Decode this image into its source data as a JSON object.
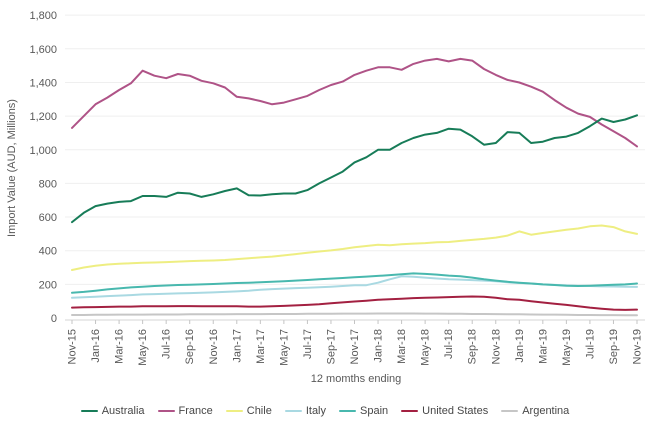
{
  "chart_data": {
    "type": "line",
    "title": "",
    "xlabel": "12 momths ending",
    "ylabel": "Import Value (AUD, Millions)",
    "x": [
      "Nov-15",
      "Dec-15",
      "Jan-16",
      "Feb-16",
      "Mar-16",
      "Apr-16",
      "May-16",
      "Jun-16",
      "Jul-16",
      "Aug-16",
      "Sep-16",
      "Oct-16",
      "Nov-16",
      "Dec-16",
      "Jan-17",
      "Feb-17",
      "Mar-17",
      "Apr-17",
      "May-17",
      "Jun-17",
      "Jul-17",
      "Aug-17",
      "Sep-17",
      "Oct-17",
      "Nov-17",
      "Dec-17",
      "Jan-18",
      "Feb-18",
      "Mar-18",
      "Apr-18",
      "May-18",
      "Jun-18",
      "Jul-18",
      "Aug-18",
      "Sep-18",
      "Oct-18",
      "Nov-18",
      "Dec-18",
      "Jan-19",
      "Feb-19",
      "Mar-19",
      "Apr-19",
      "May-19",
      "Jun-19",
      "Jul-19",
      "Aug-19",
      "Sep-19",
      "Oct-19",
      "Nov-19"
    ],
    "x_tick_every": 2,
    "ylim": [
      0,
      1800
    ],
    "y_tick_step": 200,
    "y_tick_labels": [
      "0",
      "200",
      "400",
      "600",
      "800",
      "1,000",
      "1,200",
      "1,400",
      "1,600",
      "1,800"
    ],
    "grid": true,
    "legend_position": "bottom",
    "series": [
      {
        "name": "Australia",
        "color": "#177c58",
        "values": [
          570,
          625,
          665,
          680,
          690,
          695,
          725,
          725,
          720,
          745,
          740,
          720,
          735,
          755,
          770,
          730,
          728,
          735,
          740,
          740,
          760,
          800,
          835,
          870,
          925,
          955,
          1000,
          1000,
          1040,
          1070,
          1090,
          1100,
          1125,
          1120,
          1080,
          1030,
          1040,
          1105,
          1100,
          1040,
          1048,
          1070,
          1078,
          1100,
          1140,
          1185,
          1165,
          1180,
          1205
        ]
      },
      {
        "name": "France",
        "color": "#af5387",
        "values": [
          1130,
          1200,
          1270,
          1310,
          1355,
          1395,
          1470,
          1440,
          1425,
          1450,
          1440,
          1410,
          1395,
          1370,
          1315,
          1305,
          1290,
          1270,
          1280,
          1300,
          1320,
          1355,
          1385,
          1405,
          1445,
          1470,
          1490,
          1490,
          1475,
          1510,
          1530,
          1540,
          1525,
          1540,
          1530,
          1480,
          1445,
          1415,
          1400,
          1375,
          1345,
          1295,
          1250,
          1215,
          1195,
          1150,
          1110,
          1070,
          1020
        ]
      },
      {
        "name": "Chile",
        "color": "#eeee82",
        "values": [
          285,
          300,
          310,
          318,
          322,
          325,
          328,
          330,
          332,
          335,
          338,
          340,
          342,
          345,
          350,
          355,
          360,
          365,
          372,
          380,
          388,
          395,
          402,
          410,
          420,
          428,
          435,
          432,
          438,
          442,
          445,
          450,
          452,
          458,
          464,
          470,
          478,
          490,
          515,
          495,
          505,
          515,
          525,
          532,
          545,
          550,
          540,
          515,
          500
        ]
      },
      {
        "name": "Italy",
        "color": "#a9d9e2",
        "values": [
          120,
          123,
          126,
          130,
          133,
          136,
          140,
          142,
          144,
          146,
          148,
          150,
          152,
          155,
          158,
          162,
          168,
          172,
          175,
          178,
          180,
          183,
          186,
          190,
          195,
          195,
          210,
          230,
          248,
          245,
          240,
          235,
          230,
          228,
          225,
          222,
          218,
          212,
          208,
          205,
          200,
          197,
          194,
          192,
          190,
          188,
          187,
          186,
          185
        ]
      },
      {
        "name": "Spain",
        "color": "#48b8ae",
        "values": [
          150,
          155,
          162,
          170,
          176,
          182,
          186,
          190,
          193,
          196,
          198,
          200,
          202,
          205,
          208,
          210,
          212,
          215,
          218,
          222,
          226,
          230,
          234,
          238,
          242,
          246,
          250,
          255,
          260,
          265,
          262,
          258,
          252,
          248,
          240,
          230,
          222,
          215,
          210,
          205,
          200,
          196,
          192,
          190,
          192,
          195,
          198,
          200,
          205
        ]
      },
      {
        "name": "United States",
        "color": "#a32041",
        "values": [
          62,
          64,
          65,
          66,
          68,
          68,
          70,
          70,
          70,
          71,
          71,
          70,
          70,
          70,
          70,
          68,
          68,
          70,
          72,
          75,
          78,
          82,
          88,
          93,
          98,
          103,
          108,
          112,
          115,
          118,
          120,
          122,
          124,
          126,
          128,
          126,
          120,
          112,
          108,
          100,
          92,
          85,
          78,
          70,
          62,
          55,
          50,
          48,
          50
        ]
      },
      {
        "name": "Argentina",
        "color": "#c6c6c6",
        "values": [
          18,
          18,
          19,
          19,
          20,
          20,
          20,
          21,
          21,
          21,
          22,
          22,
          22,
          22,
          23,
          23,
          23,
          24,
          24,
          24,
          25,
          25,
          25,
          26,
          26,
          26,
          27,
          27,
          27,
          27,
          26,
          26,
          25,
          25,
          24,
          24,
          23,
          22,
          22,
          21,
          20,
          20,
          19,
          18,
          18,
          17,
          17,
          16,
          16
        ]
      }
    ],
    "draw_order": [
      6,
      5,
      3,
      4,
      2,
      1,
      0
    ]
  }
}
